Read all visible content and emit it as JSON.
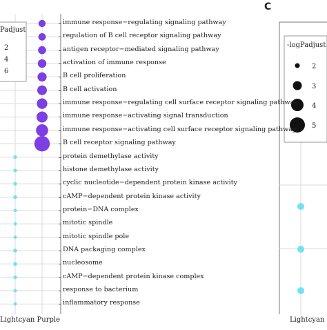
{
  "chart_data": [
    {
      "type": "scatter",
      "title": "",
      "x_categories": [
        "Lightcyan",
        "Purple"
      ],
      "x_label_prefix": "...",
      "y_terms": [
        "immune response−regulating signaling pathway",
        "regulation of B cell receptor signaling pathway",
        "antigen receptor−mediated signaling pathway",
        "activation of immune response",
        "B cell proliferation",
        "B cell activation",
        "immune response−regulating cell surface receptor signaling pathway",
        "immune response−activating signal transduction",
        "immune response−activating cell surface receptor signaling pathway",
        "B cell receptor signaling pathway",
        "protein demethylase activity",
        "histone demethylase activity",
        "cyclic nucleotide−dependent protein kinase activity",
        "cAMP−dependent protein kinase activity",
        "protein−DNA complex",
        "mitotic spindle",
        "mitotic spindle pole",
        "DNA packaging complex",
        "nucleosome",
        "cAMP−dependent protein kinase complex",
        "response to bacterium",
        "inflammatory response"
      ],
      "points": [
        {
          "x": "Purple",
          "term": 0,
          "padjust": 2.6,
          "color": "#7b3fe4"
        },
        {
          "x": "Purple",
          "term": 1,
          "padjust": 2.7,
          "color": "#7b3fe4"
        },
        {
          "x": "Purple",
          "term": 2,
          "padjust": 2.9,
          "color": "#7b3fe4"
        },
        {
          "x": "Purple",
          "term": 3,
          "padjust": 3.1,
          "color": "#7b3fe4"
        },
        {
          "x": "Purple",
          "term": 4,
          "padjust": 3.3,
          "color": "#7b3fe4"
        },
        {
          "x": "Purple",
          "term": 5,
          "padjust": 3.5,
          "color": "#7b3fe4"
        },
        {
          "x": "Purple",
          "term": 6,
          "padjust": 3.8,
          "color": "#7b3fe4"
        },
        {
          "x": "Purple",
          "term": 7,
          "padjust": 4.0,
          "color": "#7b3fe4"
        },
        {
          "x": "Purple",
          "term": 8,
          "padjust": 4.4,
          "color": "#7b3fe4"
        },
        {
          "x": "Purple",
          "term": 9,
          "padjust": 5.6,
          "color": "#7b3fe4"
        },
        {
          "x": "Lightcyan",
          "term": 10,
          "padjust": 1.3,
          "color": "#6fe3f0"
        },
        {
          "x": "Lightcyan",
          "term": 11,
          "padjust": 1.3,
          "color": "#6fe3f0"
        },
        {
          "x": "Lightcyan",
          "term": 12,
          "padjust": 1.3,
          "color": "#6fe3f0"
        },
        {
          "x": "Lightcyan",
          "term": 13,
          "padjust": 1.4,
          "color": "#6fe3f0"
        },
        {
          "x": "Lightcyan",
          "term": 14,
          "padjust": 1.2,
          "color": "#6fe3f0"
        },
        {
          "x": "Lightcyan",
          "term": 15,
          "padjust": 1.2,
          "color": "#6fe3f0"
        },
        {
          "x": "Lightcyan",
          "term": 16,
          "padjust": 1.2,
          "color": "#6fe3f0"
        },
        {
          "x": "Lightcyan",
          "term": 17,
          "padjust": 1.4,
          "color": "#6fe3f0"
        },
        {
          "x": "Lightcyan",
          "term": 18,
          "padjust": 1.4,
          "color": "#6fe3f0"
        },
        {
          "x": "Lightcyan",
          "term": 19,
          "padjust": 1.3,
          "color": "#6fe3f0"
        },
        {
          "x": "Lightcyan",
          "term": 20,
          "padjust": 1.2,
          "color": "#6fe3f0"
        },
        {
          "x": "Lightcyan",
          "term": 21,
          "padjust": 1.2,
          "color": "#6fe3f0"
        }
      ],
      "legend": {
        "title": "Padjust",
        "values": [
          2,
          4,
          6
        ],
        "placement": "top-left"
      },
      "grid": true
    },
    {
      "type": "scatter",
      "panel": "C",
      "x_categories": [
        "Lightcyan"
      ],
      "points": [
        {
          "x": "Lightcyan",
          "row": 0,
          "padjust": 1.3,
          "color": "#6fe3f0"
        },
        {
          "x": "Lightcyan",
          "row": 1,
          "padjust": 1.3,
          "color": "#6fe3f0"
        },
        {
          "x": "Lightcyan",
          "row": 2,
          "padjust": 1.3,
          "color": "#6fe3f0"
        }
      ],
      "legend": {
        "title": "-log Padjust",
        "values": [
          2,
          3,
          4,
          5
        ],
        "placement": "top-right"
      }
    }
  ],
  "ui": {
    "panel_letter": "C",
    "xlabels_left": "Lightcyan Purple",
    "xlabel_right": "Lightcyan",
    "legend_left_title": "Padjust",
    "legend_right_title": "-logPadjust",
    "colors": {
      "purple": "#7b3fe4",
      "cyan": "#6fe3f0",
      "grid": "#d9d9d9",
      "axis": "#777777"
    }
  }
}
